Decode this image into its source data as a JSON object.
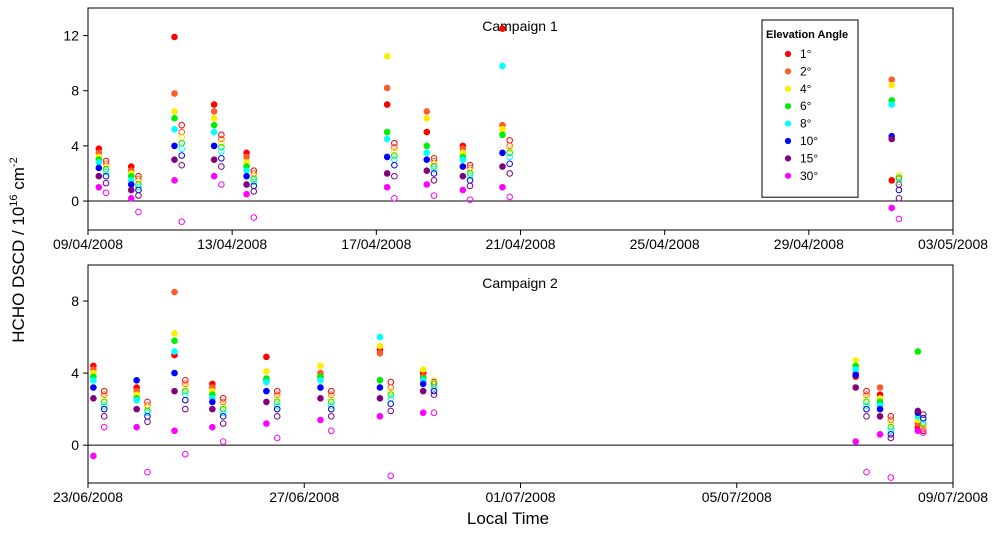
{
  "ylabel": [
    "HCHO DSCD / 10",
    "16",
    " cm",
    "-2"
  ],
  "xlabel": "Local Time",
  "chart_data": [
    {
      "type": "scatter",
      "title": "Campaign 1",
      "legend_title": "Elevation Angle",
      "legend": "top-right",
      "zero_line": true,
      "xlim": [
        100,
        124
      ],
      "xticks": [
        {
          "value": 100,
          "label": "09/04/2008"
        },
        {
          "value": 104,
          "label": "13/04/2008"
        },
        {
          "value": 108,
          "label": "17/04/2008"
        },
        {
          "value": 112,
          "label": "21/04/2008"
        },
        {
          "value": 116,
          "label": "25/04/2008"
        },
        {
          "value": 120,
          "label": "29/04/2008"
        },
        {
          "value": 124,
          "label": "03/05/2008"
        }
      ],
      "ylim": [
        -2.1,
        14
      ],
      "yticks": [
        0,
        4,
        8,
        12
      ],
      "x": [
        100.3,
        100.5,
        101.2,
        101.4,
        102.4,
        102.6,
        103.5,
        103.7,
        104.4,
        104.6,
        108.3,
        108.5,
        109.4,
        109.6,
        110.4,
        110.6,
        111.5,
        111.7,
        122.3,
        122.5
      ],
      "series": [
        {
          "name": "1°",
          "color": "#ff0000",
          "values": [
            3.8,
            2.9,
            2.5,
            1.8,
            11.9,
            5.5,
            7.0,
            4.8,
            3.5,
            2.2,
            7.0,
            4.2,
            5.0,
            3.1,
            4.0,
            2.6,
            12.5,
            4.4,
            1.5,
            1.2
          ]
        },
        {
          "name": "2°",
          "color": "#ff5a2a",
          "values": [
            3.5,
            2.7,
            2.2,
            1.6,
            7.8,
            5.0,
            6.5,
            4.5,
            3.2,
            2.0,
            8.2,
            3.9,
            6.5,
            2.9,
            3.8,
            2.4,
            5.5,
            4.0,
            8.8,
            1.6
          ]
        },
        {
          "name": "4°",
          "color": "#ffee00",
          "values": [
            3.2,
            2.5,
            2.0,
            1.4,
            6.5,
            4.6,
            6.0,
            4.2,
            2.8,
            1.8,
            10.5,
            3.6,
            6.0,
            2.7,
            3.5,
            2.2,
            5.2,
            3.8,
            8.4,
            1.9
          ]
        },
        {
          "name": "6°",
          "color": "#00ee00",
          "values": [
            3.0,
            2.3,
            1.8,
            1.2,
            6.0,
            4.2,
            5.5,
            3.9,
            2.5,
            1.6,
            5.0,
            3.3,
            4.0,
            2.5,
            3.2,
            2.0,
            4.8,
            3.5,
            7.3,
            1.7
          ]
        },
        {
          "name": "8°",
          "color": "#00ffff",
          "values": [
            2.8,
            2.1,
            1.5,
            1.0,
            5.2,
            3.8,
            5.0,
            3.6,
            2.2,
            1.4,
            4.5,
            3.0,
            3.5,
            2.3,
            3.0,
            1.8,
            9.8,
            3.2,
            7.0,
            1.4
          ]
        },
        {
          "name": "10°",
          "color": "#0000ff",
          "values": [
            2.4,
            1.8,
            1.2,
            0.8,
            4.0,
            3.3,
            4.0,
            3.1,
            1.8,
            1.1,
            3.2,
            2.6,
            3.0,
            2.0,
            2.5,
            1.5,
            3.5,
            2.7,
            4.7,
            0.8
          ]
        },
        {
          "name": "15°",
          "color": "#800080",
          "values": [
            1.8,
            1.3,
            0.8,
            0.4,
            3.0,
            2.6,
            3.0,
            2.5,
            1.2,
            0.7,
            2.0,
            1.8,
            2.2,
            1.5,
            1.8,
            1.1,
            2.5,
            2.0,
            4.5,
            0.2
          ]
        },
        {
          "name": "30°",
          "color": "#ff00ff",
          "values": [
            1.0,
            0.6,
            0.2,
            -0.8,
            1.5,
            -1.5,
            1.8,
            1.2,
            0.5,
            -1.2,
            1.0,
            0.2,
            1.2,
            0.4,
            0.8,
            0.1,
            1.0,
            0.3,
            -0.5,
            -1.3
          ]
        }
      ]
    },
    {
      "type": "scatter",
      "title": "Campaign 2",
      "zero_line": true,
      "xlim": [
        175,
        191
      ],
      "xticks": [
        {
          "value": 175,
          "label": "23/06/2008"
        },
        {
          "value": 179,
          "label": "27/06/2008"
        },
        {
          "value": 183,
          "label": "01/07/2008"
        },
        {
          "value": 187,
          "label": "05/07/2008"
        },
        {
          "value": 191,
          "label": "09/07/2008"
        }
      ],
      "ylim": [
        -2.1,
        10
      ],
      "yticks": [
        0,
        4,
        8
      ],
      "x": [
        175.1,
        175.3,
        175.9,
        176.1,
        176.6,
        176.8,
        177.3,
        177.5,
        178.3,
        178.5,
        179.3,
        179.5,
        180.4,
        180.6,
        181.2,
        181.4,
        189.2,
        189.4,
        189.65,
        189.85,
        190.35,
        190.45
      ],
      "series": [
        {
          "name": "1°",
          "color": "#ff0000",
          "values": [
            4.4,
            3.0,
            3.2,
            2.4,
            5.0,
            3.6,
            3.4,
            2.6,
            4.9,
            3.0,
            3.8,
            3.0,
            5.3,
            3.5,
            4.0,
            3.5,
            3.8,
            3.0,
            2.8,
            1.6,
            1.0,
            0.8
          ]
        },
        {
          "name": "2°",
          "color": "#ff5a2a",
          "values": [
            4.2,
            2.8,
            3.0,
            2.2,
            8.5,
            3.4,
            3.2,
            2.4,
            3.6,
            2.8,
            4.0,
            2.8,
            5.1,
            3.2,
            3.8,
            3.3,
            4.0,
            2.8,
            3.2,
            1.4,
            1.2,
            0.9
          ]
        },
        {
          "name": "4°",
          "color": "#ffee00",
          "values": [
            4.0,
            2.6,
            2.8,
            2.1,
            6.2,
            3.2,
            3.0,
            2.2,
            4.1,
            2.6,
            4.4,
            2.6,
            5.5,
            3.0,
            4.2,
            3.6,
            4.7,
            2.6,
            2.6,
            1.2,
            1.4,
            1.0
          ]
        },
        {
          "name": "6°",
          "color": "#00ee00",
          "values": [
            3.8,
            2.4,
            2.6,
            1.9,
            5.8,
            3.0,
            2.8,
            2.0,
            3.7,
            2.4,
            3.8,
            2.4,
            3.6,
            2.8,
            3.7,
            3.4,
            4.4,
            2.4,
            2.4,
            1.0,
            5.2,
            1.2
          ]
        },
        {
          "name": "8°",
          "color": "#00ffff",
          "values": [
            3.6,
            2.2,
            2.5,
            1.8,
            5.2,
            2.8,
            2.6,
            1.8,
            3.5,
            2.2,
            3.6,
            2.2,
            6.0,
            2.6,
            3.6,
            3.2,
            4.2,
            2.2,
            2.2,
            0.8,
            1.6,
            1.4
          ]
        },
        {
          "name": "10°",
          "color": "#0000ff",
          "values": [
            3.2,
            2.0,
            3.6,
            1.6,
            4.0,
            2.5,
            2.4,
            1.6,
            3.0,
            2.0,
            3.2,
            2.0,
            3.2,
            2.3,
            3.4,
            3.0,
            3.9,
            2.0,
            2.0,
            0.6,
            1.8,
            1.5
          ]
        },
        {
          "name": "15°",
          "color": "#800080",
          "values": [
            2.6,
            1.6,
            2.0,
            1.3,
            3.0,
            2.0,
            2.0,
            1.2,
            2.4,
            1.6,
            2.6,
            1.6,
            2.6,
            1.9,
            3.0,
            2.8,
            3.2,
            1.6,
            1.6,
            0.4,
            1.9,
            1.7
          ]
        },
        {
          "name": "30°",
          "color": "#ff00ff",
          "values": [
            -0.6,
            1.0,
            1.0,
            -1.5,
            0.8,
            -0.5,
            1.0,
            0.2,
            1.2,
            0.4,
            1.4,
            0.8,
            1.6,
            -1.7,
            1.8,
            1.8,
            0.2,
            -1.5,
            0.6,
            -1.8,
            0.8,
            0.7
          ]
        }
      ]
    }
  ]
}
